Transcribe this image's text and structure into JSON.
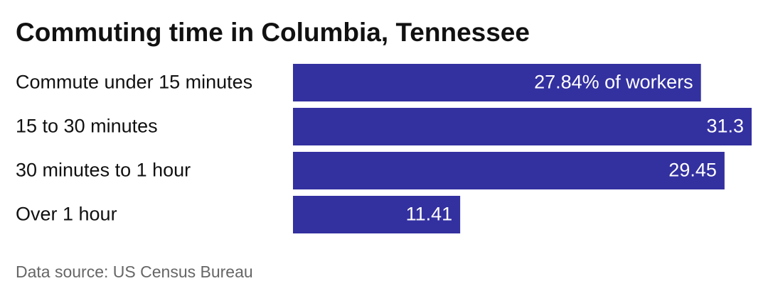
{
  "chart_data": {
    "type": "bar",
    "orientation": "horizontal",
    "title": "Commuting time in Columbia, Tennessee",
    "categories": [
      "Commute under 15 minutes",
      "15 to 30 minutes",
      "30 minutes to 1 hour",
      "Over 1 hour"
    ],
    "values": [
      27.84,
      31.3,
      29.45,
      11.41
    ],
    "value_labels": [
      "27.84% of workers",
      "31.3",
      "29.45",
      "11.41"
    ],
    "color": "#3330a0",
    "source": "Data source: US Census Bureau"
  }
}
